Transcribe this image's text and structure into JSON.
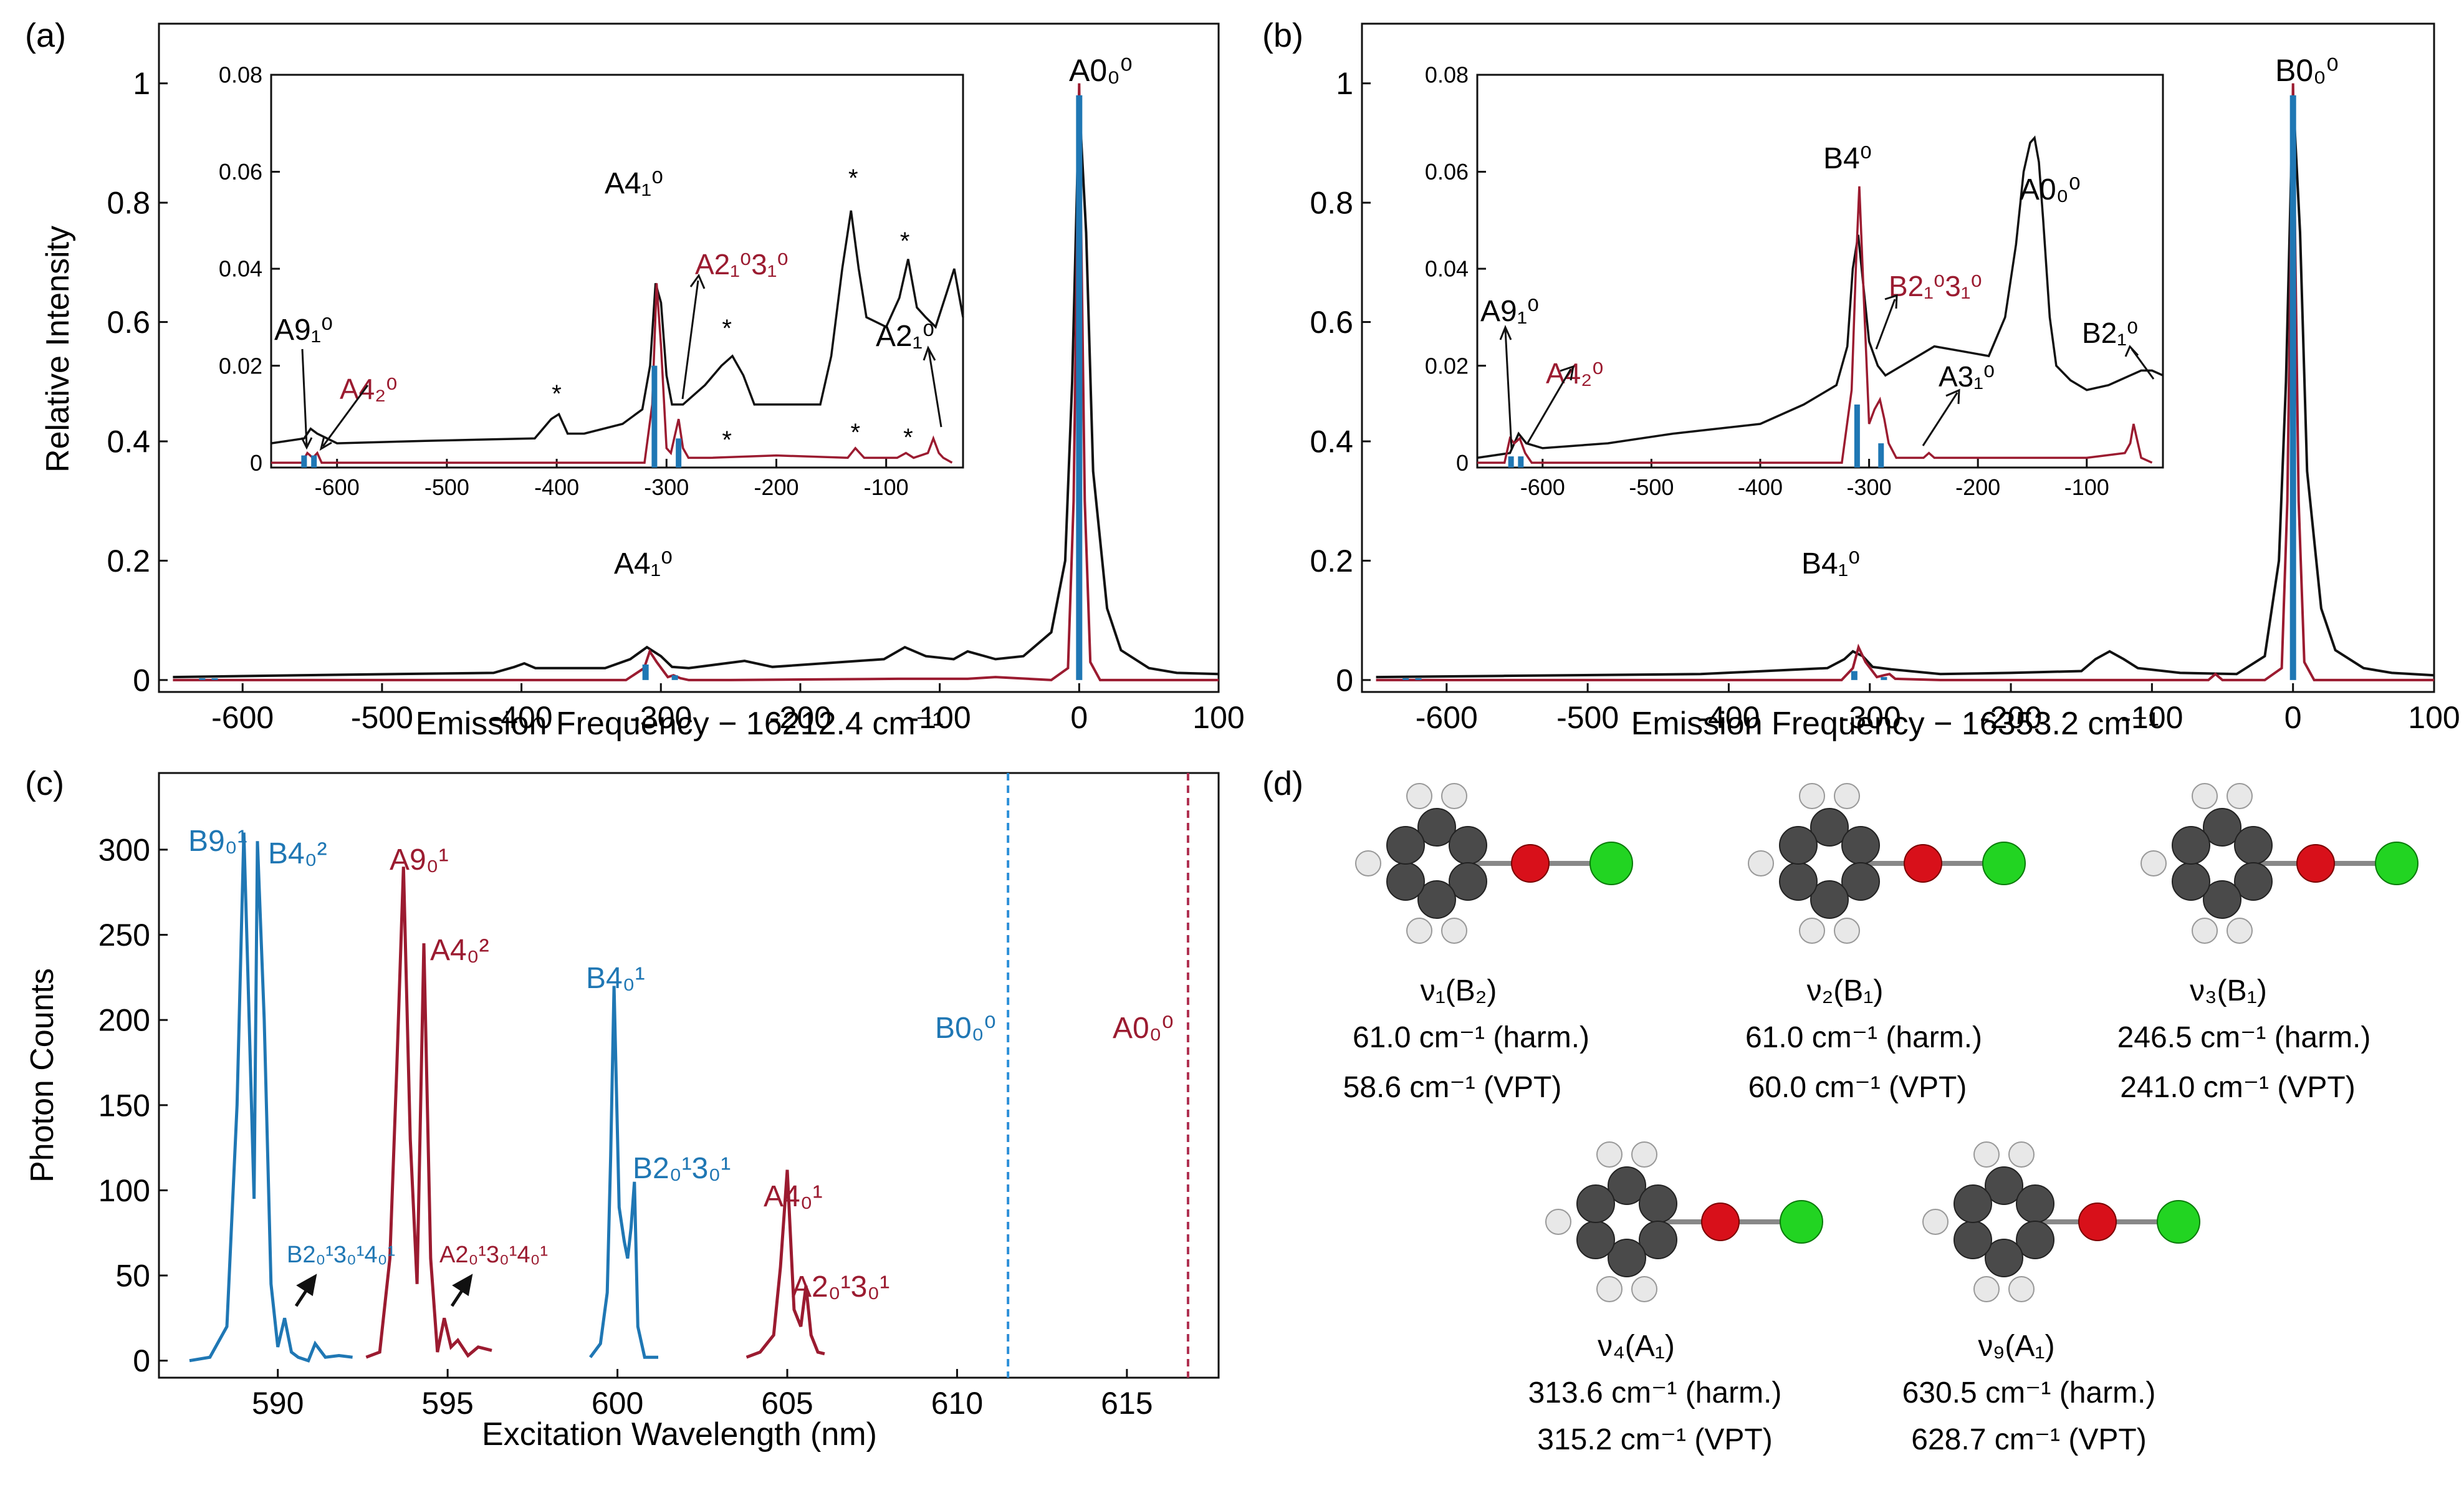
{
  "colors": {
    "black": "#111111",
    "red": "#9b1b30",
    "blue": "#1f77b4",
    "dashed_blue": "#2a8fd8",
    "dashed_red": "#b03050"
  },
  "panels": {
    "a": {
      "label": "(a)",
      "xlabel": "Emission Frequency − 16212.4 cm⁻¹",
      "ylabel": "Relative Intensity",
      "xlim": [
        -660,
        100
      ],
      "ylim": [
        -0.02,
        1.1
      ],
      "xticks": [
        "-600",
        "-500",
        "-400",
        "-300",
        "-200",
        "-100",
        "0",
        "100"
      ],
      "yticks": [
        "0",
        "0.2",
        "0.4",
        "0.6",
        "0.8",
        "1"
      ],
      "peak_labels": {
        "origin": "A0₀⁰",
        "v4": "A4₁⁰"
      },
      "inset": {
        "xlim": [
          -660,
          -30
        ],
        "ylim": [
          -0.001,
          0.08
        ],
        "xticks": [
          "-600",
          "-500",
          "-400",
          "-300",
          "-200",
          "-100"
        ],
        "yticks": [
          "0",
          "0.02",
          "0.04",
          "0.06",
          "0.08"
        ],
        "labels": {
          "v9": "A9₁⁰",
          "v4_2": "A4₂⁰",
          "v4": "A4₁⁰",
          "v23": "A2₁⁰3₁⁰",
          "v2": "A2₁⁰",
          "star": "*"
        }
      }
    },
    "b": {
      "label": "(b)",
      "xlabel": "Emission Frequency − 16353.2 cm⁻¹",
      "xlim": [
        -660,
        100
      ],
      "ylim": [
        -0.02,
        1.1
      ],
      "xticks": [
        "-600",
        "-500",
        "-400",
        "-300",
        "-200",
        "-100",
        "0",
        "100"
      ],
      "yticks": [
        "0",
        "0.2",
        "0.4",
        "0.6",
        "0.8",
        "1"
      ],
      "peak_labels": {
        "origin": "B0₀⁰",
        "v4": "B4₁⁰"
      },
      "inset": {
        "xlim": [
          -660,
          -30
        ],
        "ylim": [
          -0.001,
          0.08
        ],
        "xticks": [
          "-600",
          "-500",
          "-400",
          "-300",
          "-200",
          "-100"
        ],
        "yticks": [
          "0",
          "0.02",
          "0.04",
          "0.06",
          "0.08"
        ],
        "labels": {
          "v9": "A9₁⁰",
          "v4_2": "A4₂⁰",
          "v4": "B4⁰",
          "v23": "B2₁⁰3₁⁰",
          "v3": "A3₁⁰",
          "a00": "A0₀⁰",
          "v2": "B2₁⁰"
        }
      }
    },
    "c": {
      "label": "(c)",
      "xlabel": "Excitation Wavelength (nm)",
      "ylabel": "Photon Counts",
      "xlim": [
        586.5,
        617.7
      ],
      "ylim": [
        -10,
        345
      ],
      "xticks": [
        "590",
        "595",
        "600",
        "605",
        "610",
        "615"
      ],
      "yticks": [
        "0",
        "50",
        "100",
        "150",
        "200",
        "250",
        "300"
      ],
      "labels": {
        "b91": "B9₀¹",
        "b42": "B4₀²",
        "a91": "A9₀¹",
        "a42": "A4₀²",
        "b41": "B4₀¹",
        "b23": "B2₀¹3₀¹",
        "b234": "B2₀¹3₀¹4₀¹",
        "a234": "A2₀¹3₀¹4₀¹",
        "a41": "A4₀¹",
        "a23": "A2₀¹3₀¹",
        "b00": "B0₀⁰",
        "a00": "A0₀⁰"
      }
    },
    "d": {
      "label": "(d)",
      "modes": [
        {
          "name": "ν₁(B₂)",
          "harm": "61.0 cm⁻¹ (harm.)",
          "vpt": "58.6 cm⁻¹ (VPT)"
        },
        {
          "name": "ν₂(B₁)",
          "harm": "61.0 cm⁻¹ (harm.)",
          "vpt": "60.0 cm⁻¹ (VPT)"
        },
        {
          "name": "ν₃(B₁)",
          "harm": "246.5 cm⁻¹ (harm.)",
          "vpt": "241.0 cm⁻¹ (VPT)"
        },
        {
          "name": "ν₄(A₁)",
          "harm": "313.6 cm⁻¹ (harm.)",
          "vpt": "315.2 cm⁻¹ (VPT)"
        },
        {
          "name": "ν₉(A₁)",
          "harm": "630.5 cm⁻¹ (harm.)",
          "vpt": "628.7 cm⁻¹ (VPT)"
        }
      ]
    }
  },
  "chart_data": [
    {
      "type": "line",
      "panel": "a",
      "series": [
        {
          "name": "black emission trace",
          "x": [
            -650,
            -560,
            -420,
            -405,
            -398,
            -390,
            -340,
            -322,
            -310,
            -300,
            -292,
            -280,
            -240,
            -220,
            -140,
            -125,
            -110,
            -90,
            -80,
            -60,
            -40,
            -20,
            -10,
            -5,
            0,
            5,
            10,
            20,
            30,
            50,
            70,
            100
          ],
          "y": [
            0.005,
            0.008,
            0.012,
            0.022,
            0.028,
            0.02,
            0.02,
            0.035,
            0.055,
            0.04,
            0.022,
            0.02,
            0.032,
            0.022,
            0.035,
            0.055,
            0.04,
            0.035,
            0.048,
            0.035,
            0.04,
            0.08,
            0.2,
            0.5,
            0.97,
            0.75,
            0.35,
            0.12,
            0.05,
            0.02,
            0.012,
            0.01
          ]
        },
        {
          "name": "red emission trace",
          "x": [
            -650,
            -325,
            -312,
            -308,
            -303,
            -295,
            -291,
            -286,
            -280,
            -250,
            -130,
            -80,
            -60,
            -20,
            -8,
            -4,
            0,
            4,
            8,
            15,
            30,
            100
          ],
          "y": [
            0,
            0,
            0.02,
            0.048,
            0.03,
            0.005,
            0.008,
            0.003,
            0,
            0,
            0.002,
            0.002,
            0.005,
            0,
            0.02,
            0.3,
            1.0,
            0.3,
            0.03,
            0,
            0,
            0
          ]
        },
        {
          "name": "blue stick markers",
          "x": [
            -629,
            -620,
            -311,
            -290,
            0
          ],
          "y": [
            0.003,
            0.003,
            0.026,
            0.008,
            0.98
          ]
        }
      ]
    },
    {
      "type": "line",
      "panel": "a inset",
      "series": [
        {
          "name": "black emission trace",
          "x": [
            -660,
            -630,
            -624,
            -618,
            -600,
            -520,
            -420,
            -405,
            -398,
            -390,
            -375,
            -340,
            -322,
            -315,
            -310,
            -305,
            -300,
            -295,
            -285,
            -265,
            -250,
            -240,
            -230,
            -220,
            -160,
            -150,
            -140,
            -132,
            -125,
            -118,
            -100,
            -88,
            -80,
            -72,
            -64,
            -55,
            -45,
            -38,
            -30
          ],
          "y": [
            0.004,
            0.005,
            0.007,
            0.006,
            0.004,
            0.0045,
            0.005,
            0.009,
            0.01,
            0.006,
            0.006,
            0.008,
            0.011,
            0.02,
            0.037,
            0.033,
            0.018,
            0.012,
            0.012,
            0.016,
            0.02,
            0.022,
            0.018,
            0.012,
            0.012,
            0.022,
            0.04,
            0.052,
            0.04,
            0.03,
            0.028,
            0.034,
            0.042,
            0.032,
            0.03,
            0.028,
            0.035,
            0.04,
            0.03
          ]
        },
        {
          "name": "red emission trace",
          "x": [
            -660,
            -632,
            -627,
            -622,
            -618,
            -614,
            -600,
            -320,
            -313,
            -309,
            -305,
            -300,
            -296,
            -293,
            -289,
            -285,
            -280,
            -260,
            -200,
            -135,
            -128,
            -120,
            -90,
            -82,
            -75,
            -62,
            -57,
            -52,
            -48,
            -40
          ],
          "y": [
            0,
            0,
            0.002,
            0.001,
            0.002,
            0,
            0,
            0,
            0.012,
            0.037,
            0.024,
            0.003,
            0.002,
            0.005,
            0.009,
            0.003,
            0.001,
            0.001,
            0.0015,
            0.001,
            0.003,
            0.001,
            0.001,
            0.002,
            0.001,
            0.002,
            0.005,
            0.002,
            0.001,
            0
          ]
        },
        {
          "name": "blue stick markers",
          "x": [
            -630,
            -621,
            -311,
            -289
          ],
          "y": [
            0.0015,
            0.0015,
            0.02,
            0.005
          ]
        }
      ]
    },
    {
      "type": "line",
      "panel": "b",
      "series": [
        {
          "name": "black emission trace",
          "x": [
            -650,
            -560,
            -420,
            -330,
            -318,
            -312,
            -305,
            -298,
            -285,
            -250,
            -200,
            -150,
            -140,
            -130,
            -120,
            -110,
            -80,
            -40,
            -20,
            -10,
            -5,
            0,
            5,
            10,
            20,
            30,
            50,
            70,
            100
          ],
          "y": [
            0.005,
            0.007,
            0.01,
            0.02,
            0.035,
            0.048,
            0.04,
            0.022,
            0.018,
            0.01,
            0.012,
            0.015,
            0.035,
            0.048,
            0.035,
            0.02,
            0.012,
            0.01,
            0.04,
            0.2,
            0.5,
            0.98,
            0.75,
            0.35,
            0.12,
            0.05,
            0.02,
            0.012,
            0.008
          ]
        },
        {
          "name": "red emission trace",
          "x": [
            -650,
            -320,
            -312,
            -308,
            -303,
            -295,
            -290,
            -286,
            -282,
            -250,
            -100,
            -60,
            -55,
            -50,
            -20,
            -8,
            -4,
            0,
            4,
            8,
            15,
            30,
            100
          ],
          "y": [
            0,
            0,
            0.02,
            0.055,
            0.03,
            0.005,
            0.008,
            0.01,
            0.002,
            0,
            0,
            0,
            0.01,
            0,
            0,
            0.02,
            0.3,
            1.0,
            0.3,
            0.03,
            0,
            0,
            0
          ]
        },
        {
          "name": "blue stick markers",
          "x": [
            -629,
            -620,
            -311,
            -290,
            0
          ],
          "y": [
            0.003,
            0.003,
            0.015,
            0.005,
            0.98
          ]
        }
      ]
    },
    {
      "type": "line",
      "panel": "b inset",
      "series": [
        {
          "name": "black emission trace",
          "x": [
            -660,
            -630,
            -622,
            -615,
            -600,
            -540,
            -480,
            -400,
            -360,
            -330,
            -320,
            -315,
            -310,
            -305,
            -300,
            -292,
            -285,
            -270,
            -240,
            -215,
            -190,
            -175,
            -165,
            -158,
            -152,
            -148,
            -144,
            -140,
            -134,
            -128,
            -115,
            -100,
            -80,
            -70,
            -60,
            -50,
            -40,
            -30
          ],
          "y": [
            0.001,
            0.002,
            0.006,
            0.004,
            0.003,
            0.004,
            0.006,
            0.008,
            0.012,
            0.016,
            0.024,
            0.04,
            0.047,
            0.036,
            0.025,
            0.02,
            0.018,
            0.02,
            0.024,
            0.023,
            0.022,
            0.03,
            0.045,
            0.06,
            0.066,
            0.067,
            0.062,
            0.05,
            0.03,
            0.02,
            0.017,
            0.015,
            0.016,
            0.017,
            0.018,
            0.019,
            0.019,
            0.018
          ]
        },
        {
          "name": "red emission trace",
          "x": [
            -660,
            -635,
            -630,
            -626,
            -621,
            -616,
            -610,
            -325,
            -316,
            -312,
            -309,
            -305,
            -300,
            -295,
            -290,
            -286,
            -282,
            -275,
            -250,
            -245,
            -240,
            -200,
            -100,
            -65,
            -60,
            -57,
            -54,
            -50,
            -40
          ],
          "y": [
            0,
            0,
            0.005,
            0.004,
            0.005,
            0.002,
            0,
            0,
            0.015,
            0.041,
            0.057,
            0.035,
            0.008,
            0.011,
            0.013,
            0.009,
            0.004,
            0.001,
            0.001,
            0.002,
            0.001,
            0.001,
            0.001,
            0.002,
            0.004,
            0.008,
            0.005,
            0.001,
            0
          ]
        },
        {
          "name": "blue stick markers",
          "x": [
            -629,
            -620,
            -311,
            -289
          ],
          "y": [
            0.0013,
            0.0013,
            0.012,
            0.004
          ]
        }
      ]
    },
    {
      "type": "line",
      "panel": "c",
      "series": [
        {
          "name": "B excitation trace",
          "x": [
            587.4,
            588.0,
            588.5,
            588.8,
            589.0,
            589.1,
            589.3,
            589.4,
            589.6,
            589.8,
            590.0,
            590.2,
            590.4,
            590.6,
            590.9,
            591.1,
            591.4,
            591.8,
            592.2
          ],
          "y": [
            0,
            2,
            20,
            150,
            310,
            240,
            95,
            305,
            200,
            45,
            8,
            25,
            5,
            2,
            0,
            10,
            2,
            3,
            2
          ]
        },
        {
          "name": "A excitation trace",
          "x": [
            592.6,
            593.0,
            593.3,
            593.5,
            593.7,
            593.9,
            594.1,
            594.3,
            594.5,
            594.7,
            594.9,
            595.1,
            595.3,
            595.6,
            595.9,
            596.3
          ],
          "y": [
            2,
            5,
            60,
            170,
            290,
            130,
            45,
            245,
            60,
            5,
            25,
            8,
            12,
            3,
            8,
            6
          ]
        },
        {
          "name": "B 4-band trace",
          "x": [
            599.2,
            599.5,
            599.7,
            599.8,
            599.9,
            600.05,
            600.2,
            600.3,
            600.4,
            600.5,
            600.6,
            600.8,
            601.2
          ],
          "y": [
            2,
            10,
            40,
            120,
            220,
            90,
            70,
            60,
            78,
            105,
            20,
            2,
            2
          ]
        },
        {
          "name": "A 4-band trace",
          "x": [
            603.8,
            604.2,
            604.6,
            604.8,
            605.0,
            605.2,
            605.4,
            605.55,
            605.7,
            605.9,
            606.1
          ],
          "y": [
            2,
            5,
            15,
            55,
            112,
            30,
            20,
            44,
            15,
            5,
            4
          ]
        },
        {
          "name": "B origin marker",
          "x": [
            611.5
          ],
          "y": [
            0
          ]
        },
        {
          "name": "A origin marker",
          "x": [
            616.8
          ],
          "y": [
            0
          ]
        }
      ]
    }
  ]
}
